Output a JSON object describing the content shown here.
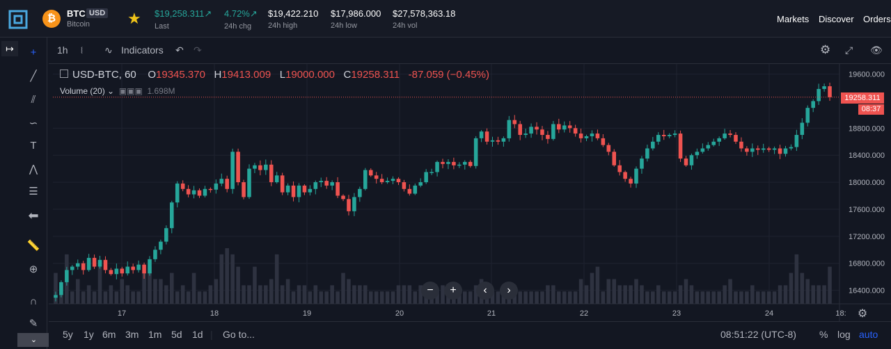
{
  "header": {
    "symbol": "BTC",
    "quote": "USD",
    "name": "Bitcoin",
    "coin_glyph": "₿",
    "stats": [
      {
        "value": "$19,258.311↗",
        "label": "Last",
        "color": "#26a69a"
      },
      {
        "value": "4.72%↗",
        "label": "24h chg",
        "color": "#26a69a"
      },
      {
        "value": "$19,422.210",
        "label": "24h high",
        "color": "#ffffff"
      },
      {
        "value": "$17,986.000",
        "label": "24h low",
        "color": "#ffffff"
      },
      {
        "value": "$27,578,363.18",
        "label": "24h vol",
        "color": "#ffffff"
      }
    ],
    "nav": [
      "Markets",
      "Discover",
      "Orders"
    ]
  },
  "toolbar": {
    "interval": "1h",
    "indicators": "Indicators"
  },
  "legend": {
    "pair": "USD-BTC, 60",
    "o_label": "O",
    "o": "19345.370",
    "h_label": "H",
    "h": "19413.009",
    "l_label": "L",
    "l": "19000.000",
    "c_label": "C",
    "c": "19258.311",
    "change": "-87.059 (−0.45%)",
    "volume_label": "Volume (20)",
    "volume_value": "1.698M"
  },
  "price_tag": "19258.311",
  "countdown": "08:37",
  "bottom": {
    "ranges": [
      "5y",
      "1y",
      "6m",
      "3m",
      "1m",
      "5d",
      "1d"
    ],
    "goto": "Go to...",
    "time": "08:51:22 (UTC-8)",
    "percent": "%",
    "log": "log",
    "auto": "auto"
  },
  "colors": {
    "up": "#26a69a",
    "down": "#ef5350",
    "accent": "#2962ff"
  },
  "chart_data": {
    "type": "candlestick",
    "title": "USD-BTC, 60",
    "y_ticks": [
      "19600.000",
      "18800.000",
      "18400.000",
      "18000.000",
      "17600.000",
      "17200.000",
      "16800.000",
      "16400.000"
    ],
    "x_ticks": [
      "17",
      "18",
      "19",
      "20",
      "21",
      "22",
      "23",
      "24",
      "18:"
    ],
    "ylim": [
      16200,
      19750
    ],
    "last_price": 19258.311,
    "series": [
      {
        "name": "USD-BTC",
        "values": [
          16330,
          16520,
          16700,
          16750,
          16800,
          16700,
          16880,
          16750,
          16850,
          16700,
          16640,
          16720,
          16650,
          16750,
          16700,
          16780,
          16650,
          16860,
          17000,
          17120,
          17320,
          17700,
          17980,
          17900,
          17820,
          17880,
          17800,
          17900,
          17890,
          17980,
          18050,
          17900,
          18450,
          18000,
          17780,
          18200,
          18250,
          18180,
          18260,
          18000,
          18100,
          17850,
          17950,
          17780,
          17950,
          17850,
          17900,
          18000,
          18020,
          17950,
          18000,
          17800,
          17750,
          17570,
          17780,
          17900,
          18180,
          18100,
          18050,
          18000,
          18020,
          18050,
          18000,
          17900,
          17830,
          17950,
          18000,
          18150,
          18150,
          18300,
          18270,
          18300,
          18250,
          18260,
          18300,
          18240,
          18650,
          18750,
          18600,
          18620,
          18600,
          18650,
          18920,
          18860,
          18700,
          18720,
          18820,
          18780,
          18700,
          18640,
          18860,
          18780,
          18840,
          18800,
          18720,
          18650,
          18680,
          18720,
          18650,
          18550,
          18450,
          18250,
          18150,
          18050,
          17980,
          18200,
          18350,
          18500,
          18600,
          18700,
          18680,
          18700,
          18720,
          18350,
          18250,
          18400,
          18450,
          18500,
          18550,
          18600,
          18650,
          18720,
          18700,
          18600,
          18500,
          18450,
          18500,
          18480,
          18500,
          18480,
          18500,
          18420,
          18500,
          18520,
          18700,
          18880,
          19100,
          19200,
          19380,
          19420,
          19258
        ]
      }
    ],
    "volume": [
      5,
      3,
      8,
      2,
      4,
      2,
      3,
      2,
      6,
      2,
      3,
      2,
      4,
      3,
      2,
      2,
      5,
      6,
      4,
      4,
      3,
      5,
      2,
      3,
      2,
      5,
      2,
      2,
      3,
      4,
      8,
      9,
      8,
      6,
      3,
      3,
      6,
      3,
      3,
      4,
      8,
      3,
      4,
      2,
      3,
      3,
      2,
      3,
      2,
      2,
      3,
      2,
      5,
      4,
      3,
      3,
      3,
      2,
      2,
      2,
      2,
      2,
      3,
      3,
      3,
      2,
      3,
      2,
      3,
      2,
      3,
      2,
      2,
      2,
      2,
      2,
      3,
      4,
      2,
      2,
      2,
      2,
      3,
      3,
      2,
      2,
      2,
      2,
      2,
      3,
      3,
      2,
      2,
      2,
      2,
      4,
      3,
      5,
      6,
      2,
      4,
      4,
      3,
      3,
      3,
      4,
      3,
      2,
      2,
      3,
      2,
      2,
      2,
      3,
      4,
      3,
      2,
      2,
      2,
      2,
      2,
      3,
      4,
      2,
      2,
      2,
      3,
      2,
      2,
      2,
      2,
      3,
      3,
      5,
      8,
      5,
      4,
      3,
      3,
      3,
      6
    ]
  }
}
